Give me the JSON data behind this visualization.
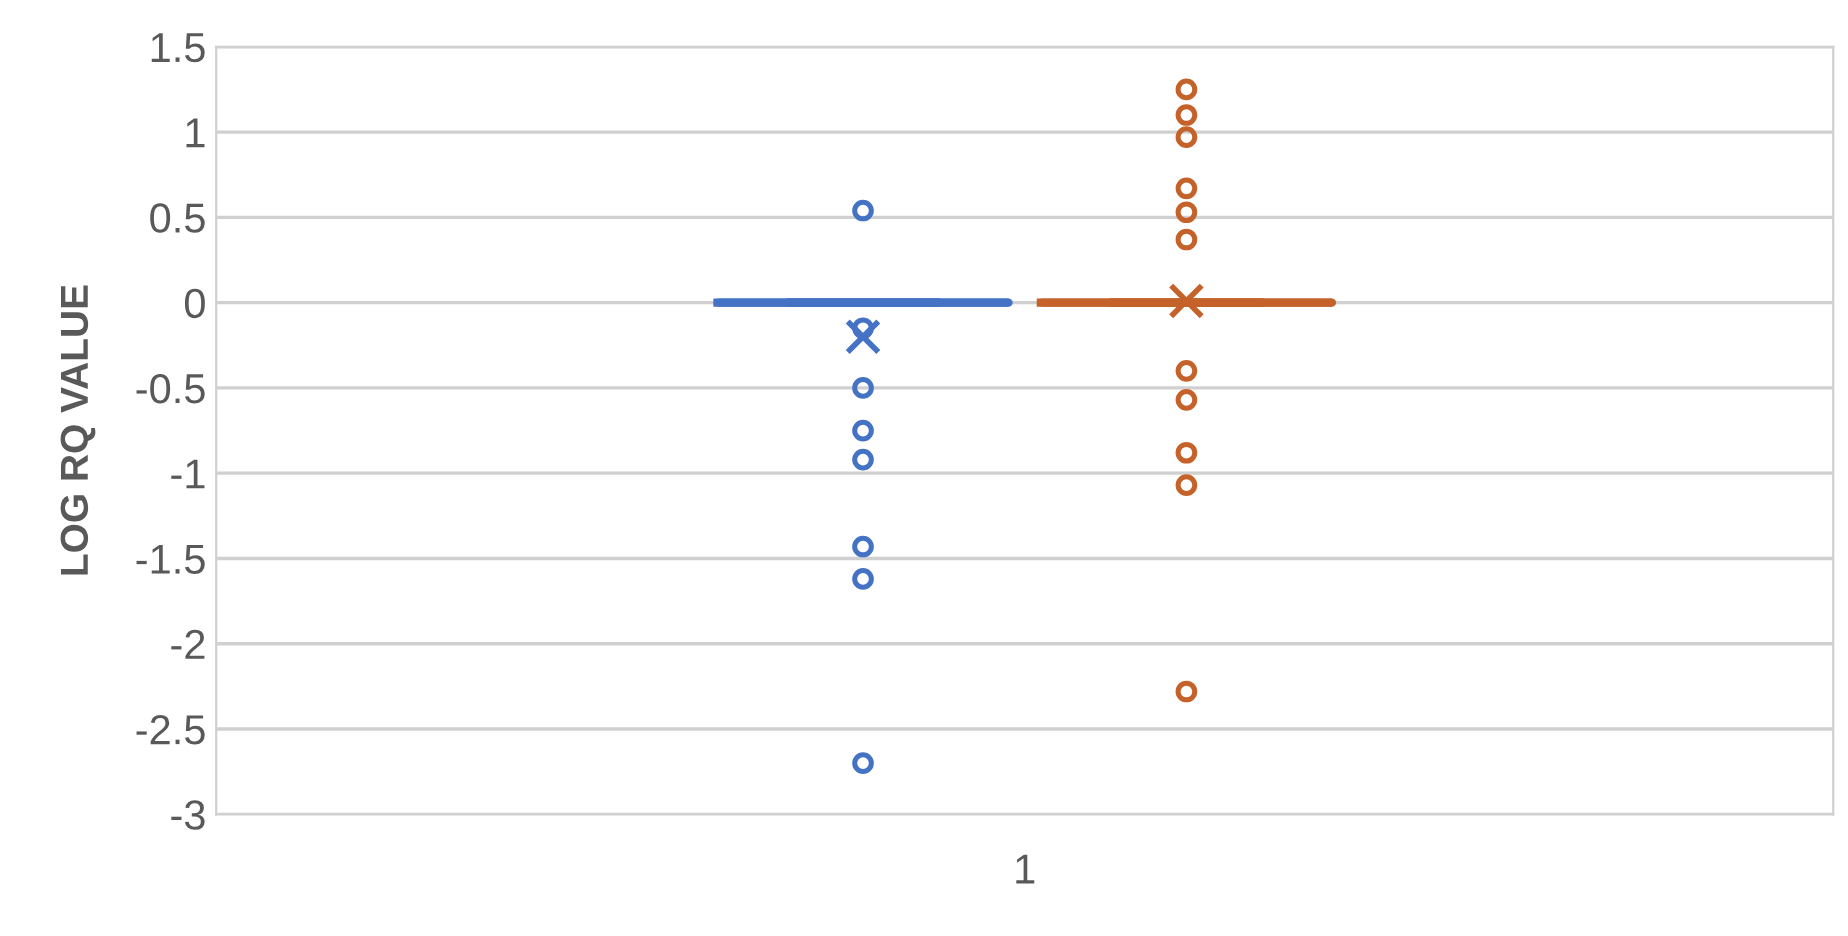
{
  "chart_data": {
    "type": "box",
    "ylabel": "LOG RQ VALUE",
    "categories": [
      "1"
    ],
    "ylim": [
      -3,
      1.5
    ],
    "yticks": [
      -3,
      -2.5,
      -2,
      -1.5,
      -1,
      -0.5,
      0,
      0.5,
      1,
      1.5
    ],
    "grid": "y",
    "series": [
      {
        "color": "#4472c4",
        "boxes": [
          {
            "low": 0,
            "q1": 0,
            "median": 0,
            "q3": 0,
            "high": 0,
            "mean": -0.2,
            "outliers": [
              0.54,
              -0.15,
              -0.5,
              -0.75,
              -0.92,
              -1.43,
              -1.62,
              -2.7
            ]
          }
        ]
      },
      {
        "color": "#c5622a",
        "boxes": [
          {
            "low": 0,
            "q1": 0,
            "median": 0,
            "q3": 0,
            "high": 0,
            "mean": 0.01,
            "outliers": [
              1.25,
              1.1,
              0.97,
              0.67,
              0.53,
              0.37,
              -0.4,
              -0.57,
              -0.88,
              -1.07,
              -2.28
            ]
          }
        ]
      }
    ]
  }
}
